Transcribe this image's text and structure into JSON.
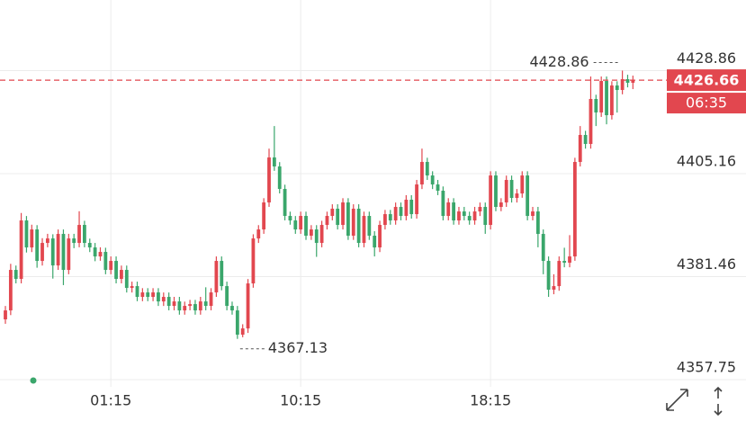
{
  "chart_data": {
    "type": "candlestick",
    "categories": [
      null,
      null,
      null,
      null,
      null,
      null,
      null,
      null,
      null,
      null,
      null,
      null,
      null,
      null,
      null,
      null,
      null,
      null,
      null,
      null,
      "01:15",
      null,
      null,
      null,
      null,
      null,
      null,
      null,
      null,
      null,
      null,
      null,
      null,
      null,
      null,
      null,
      null,
      null,
      null,
      null,
      null,
      null,
      null,
      null,
      null,
      null,
      null,
      null,
      null,
      null,
      null,
      null,
      null,
      null,
      null,
      null,
      "10:15",
      null,
      null,
      null,
      null,
      null,
      null,
      null,
      null,
      null,
      null,
      null,
      null,
      null,
      null,
      null,
      null,
      null,
      null,
      null,
      null,
      null,
      null,
      null,
      null,
      null,
      null,
      null,
      null,
      null,
      null,
      null,
      null,
      null,
      null,
      null,
      "18:15",
      null,
      null,
      null,
      null,
      null,
      null,
      null,
      null,
      null,
      null,
      null,
      null,
      null,
      null,
      null,
      null,
      null,
      null,
      null,
      null,
      null,
      null,
      null,
      null,
      null,
      null
    ],
    "ohlc": [
      [
        4371.62,
        4374.7,
        4370.6,
        4373.68
      ],
      [
        4373.68,
        4384.4,
        4372.6,
        4383.0
      ],
      [
        4383.0,
        4384.0,
        4379.9,
        4380.93
      ],
      [
        4380.93,
        4396.1,
        4379.9,
        4394.38
      ],
      [
        4394.38,
        4395.4,
        4387.0,
        4388.17
      ],
      [
        4388.17,
        4393.4,
        4387.1,
        4392.31
      ],
      [
        4392.31,
        4393.3,
        4383.5,
        4385.07
      ],
      [
        4385.07,
        4390.3,
        4384.0,
        4389.21
      ],
      [
        4389.21,
        4391.3,
        4388.2,
        4390.24
      ],
      [
        4390.24,
        4391.2,
        4381.0,
        4384.03
      ],
      [
        4384.03,
        4392.3,
        4383.0,
        4391.28
      ],
      [
        4391.28,
        4392.3,
        4379.5,
        4383.0
      ],
      [
        4383.0,
        4391.3,
        4382.0,
        4390.24
      ],
      [
        4390.24,
        4391.3,
        4388.0,
        4389.21
      ],
      [
        4389.21,
        4396.5,
        4388.2,
        4393.35
      ],
      [
        4393.35,
        4394.3,
        4388.2,
        4389.21
      ],
      [
        4389.21,
        4390.2,
        4387.1,
        4388.17
      ],
      [
        4388.17,
        4389.2,
        4385.0,
        4386.1
      ],
      [
        4386.1,
        4388.2,
        4385.1,
        4387.14
      ],
      [
        4387.14,
        4388.1,
        4382.0,
        4383.0
      ],
      [
        4383.0,
        4386.1,
        4382.0,
        4385.07
      ],
      [
        4385.07,
        4386.1,
        4379.9,
        4380.93
      ],
      [
        4380.93,
        4384.0,
        4379.9,
        4383.0
      ],
      [
        4383.0,
        4384.0,
        4377.8,
        4378.86
      ],
      [
        4378.86,
        4380.3,
        4377.8,
        4379.27
      ],
      [
        4379.27,
        4380.3,
        4375.8,
        4376.79
      ],
      [
        4376.79,
        4378.8,
        4375.8,
        4377.82
      ],
      [
        4377.82,
        4378.8,
        4375.8,
        4376.79
      ],
      [
        4376.79,
        4378.8,
        4375.8,
        4377.82
      ],
      [
        4377.82,
        4378.8,
        4374.7,
        4375.75
      ],
      [
        4375.75,
        4377.8,
        4374.7,
        4376.79
      ],
      [
        4376.79,
        4377.8,
        4373.7,
        4374.72
      ],
      [
        4374.72,
        4376.8,
        4373.7,
        4375.75
      ],
      [
        4375.75,
        4376.8,
        4372.7,
        4373.68
      ],
      [
        4373.68,
        4375.7,
        4372.7,
        4374.72
      ],
      [
        4374.72,
        4376.1,
        4373.7,
        4375.13
      ],
      [
        4375.13,
        4376.1,
        4372.7,
        4373.68
      ],
      [
        4373.68,
        4376.8,
        4372.7,
        4375.75
      ],
      [
        4375.75,
        4379.0,
        4373.7,
        4374.72
      ],
      [
        4374.72,
        4378.8,
        4373.7,
        4377.82
      ],
      [
        4377.82,
        4386.1,
        4376.8,
        4385.07
      ],
      [
        4385.07,
        4386.1,
        4378.3,
        4379.27
      ],
      [
        4379.27,
        4380.3,
        4373.7,
        4374.72
      ],
      [
        4374.72,
        4375.7,
        4372.7,
        4373.68
      ],
      [
        4373.68,
        4374.7,
        4367.13,
        4368.1
      ],
      [
        4368.1,
        4370.5,
        4367.5,
        4369.54
      ],
      [
        4369.54,
        4380.9,
        4368.5,
        4379.89
      ],
      [
        4379.89,
        4391.2,
        4378.9,
        4390.24
      ],
      [
        4390.24,
        4393.3,
        4389.2,
        4392.31
      ],
      [
        4392.31,
        4399.5,
        4391.3,
        4398.52
      ],
      [
        4398.52,
        4410.9,
        4397.5,
        4408.87
      ],
      [
        4408.87,
        4416.1,
        4405.8,
        4406.8
      ],
      [
        4406.8,
        4407.8,
        4400.6,
        4401.63
      ],
      [
        4401.63,
        4402.6,
        4394.4,
        4395.42
      ],
      [
        4395.42,
        4396.4,
        4393.4,
        4394.38
      ],
      [
        4394.38,
        4395.4,
        4391.3,
        4392.31
      ],
      [
        4392.31,
        4396.4,
        4391.3,
        4395.42
      ],
      [
        4395.42,
        4396.4,
        4389.9,
        4390.87
      ],
      [
        4390.87,
        4393.3,
        4389.9,
        4392.31
      ],
      [
        4392.31,
        4393.3,
        4386.0,
        4389.21
      ],
      [
        4389.21,
        4394.3,
        4388.2,
        4393.35
      ],
      [
        4393.35,
        4396.4,
        4392.3,
        4395.42
      ],
      [
        4395.42,
        4398.1,
        4394.4,
        4397.08
      ],
      [
        4397.08,
        4398.1,
        4392.3,
        4393.35
      ],
      [
        4393.35,
        4399.5,
        4392.3,
        4398.52
      ],
      [
        4398.52,
        4399.5,
        4389.9,
        4390.87
      ],
      [
        4390.87,
        4398.1,
        4389.9,
        4397.08
      ],
      [
        4397.08,
        4398.1,
        4388.2,
        4389.21
      ],
      [
        4389.21,
        4396.4,
        4388.2,
        4395.42
      ],
      [
        4395.42,
        4396.4,
        4389.9,
        4390.87
      ],
      [
        4390.87,
        4391.9,
        4386.1,
        4388.17
      ],
      [
        4388.17,
        4394.3,
        4387.1,
        4393.35
      ],
      [
        4393.35,
        4396.8,
        4392.3,
        4395.83
      ],
      [
        4395.83,
        4396.8,
        4393.4,
        4394.38
      ],
      [
        4394.38,
        4398.5,
        4393.4,
        4397.49
      ],
      [
        4397.49,
        4398.5,
        4394.4,
        4395.42
      ],
      [
        4395.42,
        4400.2,
        4394.4,
        4399.15
      ],
      [
        4399.15,
        4400.2,
        4394.8,
        4395.83
      ],
      [
        4395.83,
        4403.7,
        4394.8,
        4402.66
      ],
      [
        4402.66,
        4410.9,
        4401.6,
        4407.84
      ],
      [
        4407.84,
        4408.8,
        4403.7,
        4404.73
      ],
      [
        4404.73,
        4405.7,
        4401.6,
        4402.66
      ],
      [
        4402.66,
        4403.7,
        4400.2,
        4401.22
      ],
      [
        4401.22,
        4402.2,
        4394.4,
        4395.42
      ],
      [
        4395.42,
        4399.5,
        4394.4,
        4398.52
      ],
      [
        4398.52,
        4399.5,
        4393.4,
        4394.38
      ],
      [
        4394.38,
        4397.5,
        4393.4,
        4396.45
      ],
      [
        4396.45,
        4397.5,
        4394.4,
        4395.42
      ],
      [
        4395.42,
        4396.4,
        4393.4,
        4394.38
      ],
      [
        4394.38,
        4397.5,
        4393.4,
        4396.45
      ],
      [
        4396.45,
        4398.5,
        4395.4,
        4397.49
      ],
      [
        4397.49,
        4398.5,
        4391.3,
        4393.35
      ],
      [
        4393.35,
        4405.7,
        4392.3,
        4404.73
      ],
      [
        4404.73,
        4405.7,
        4396.5,
        4397.49
      ],
      [
        4397.49,
        4399.5,
        4396.5,
        4398.52
      ],
      [
        4398.52,
        4404.7,
        4397.5,
        4403.7
      ],
      [
        4403.7,
        4404.7,
        4398.5,
        4399.56
      ],
      [
        4399.56,
        4401.6,
        4398.5,
        4400.59
      ],
      [
        4400.59,
        4405.7,
        4399.6,
        4404.73
      ],
      [
        4404.73,
        4405.7,
        4394.4,
        4395.42
      ],
      [
        4395.42,
        4397.5,
        4394.4,
        4396.45
      ],
      [
        4396.45,
        4397.5,
        4388.2,
        4391.28
      ],
      [
        4391.28,
        4392.3,
        4382.0,
        4385.07
      ],
      [
        4385.07,
        4386.1,
        4376.8,
        4378.45
      ],
      [
        4378.45,
        4382.0,
        4377.4,
        4379.27
      ],
      [
        4379.27,
        4386.1,
        4378.2,
        4385.07
      ],
      [
        4385.07,
        4388.1,
        4383.6,
        4384.66
      ],
      [
        4384.66,
        4391.0,
        4383.6,
        4386.1
      ],
      [
        4386.1,
        4408.8,
        4385.1,
        4407.84
      ],
      [
        4407.84,
        4416.1,
        4406.8,
        4414.05
      ],
      [
        4414.05,
        4415.0,
        4410.9,
        4411.98
      ],
      [
        4411.98,
        4427.5,
        4410.9,
        4422.33
      ],
      [
        4422.33,
        4423.3,
        4416.1,
        4419.22
      ],
      [
        4419.22,
        4427.5,
        4418.2,
        4426.47
      ],
      [
        4426.47,
        4427.5,
        4416.5,
        4418.6
      ],
      [
        4418.6,
        4426.4,
        4417.6,
        4425.43
      ],
      [
        4425.43,
        4426.4,
        4419.2,
        4424.4
      ],
      [
        4424.4,
        4428.86,
        4423.4,
        4426.88
      ],
      [
        4426.88,
        4427.9,
        4425.0,
        4426.06
      ],
      [
        4426.06,
        4427.7,
        4424.6,
        4426.66
      ]
    ],
    "up_color": "#e2474f",
    "down_color": "#3aa66b",
    "ylim": [
      4356.1,
      4445.1
    ],
    "yticks": [
      4357.75,
      4381.46,
      4405.16,
      4428.86
    ],
    "grid": true,
    "countdown": "06:35"
  }
}
